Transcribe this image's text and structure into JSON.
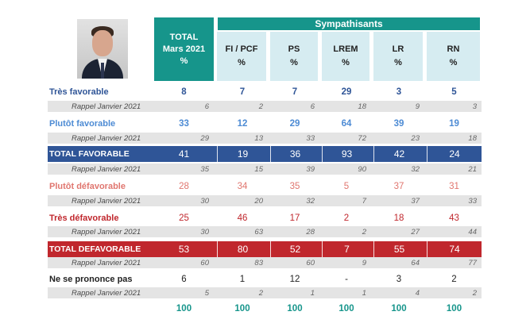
{
  "header": {
    "total": {
      "line1": "TOTAL",
      "line2": "Mars 2021",
      "line3": "%"
    },
    "group_title": "Sympathisants",
    "parties": [
      {
        "name": "FI / PCF",
        "unit": "%"
      },
      {
        "name": "PS",
        "unit": "%"
      },
      {
        "name": "LREM",
        "unit": "%"
      },
      {
        "name": "LR",
        "unit": "%"
      },
      {
        "name": "RN",
        "unit": "%"
      }
    ]
  },
  "rows": [
    {
      "label": "Très favorable",
      "kind": "main",
      "color": "#2f5597",
      "values": [
        "8",
        "7",
        "7",
        "29",
        "3",
        "5"
      ]
    },
    {
      "label": "Rappel Janvier 2021",
      "kind": "rappel",
      "values": [
        "6",
        "2",
        "6",
        "18",
        "9",
        "3"
      ]
    },
    {
      "label": "Plutôt favorable",
      "kind": "main",
      "color": "#4d8bd4",
      "values": [
        "33",
        "12",
        "29",
        "64",
        "39",
        "19"
      ]
    },
    {
      "label": "Rappel Janvier 2021",
      "kind": "rappel",
      "values": [
        "29",
        "13",
        "33",
        "72",
        "23",
        "18"
      ]
    },
    {
      "label": "TOTAL FAVORABLE",
      "kind": "band",
      "color": "#2f5597",
      "values": [
        "41",
        "19",
        "36",
        "93",
        "42",
        "24"
      ]
    },
    {
      "label": "Rappel Janvier 2021",
      "kind": "rappel",
      "values": [
        "35",
        "15",
        "39",
        "90",
        "32",
        "21"
      ]
    },
    {
      "label": "Plutôt défavorable",
      "kind": "main",
      "color": "#e0766f",
      "values": [
        "28",
        "34",
        "35",
        "5",
        "37",
        "31"
      ]
    },
    {
      "label": "Rappel Janvier 2021",
      "kind": "rappel",
      "values": [
        "30",
        "20",
        "32",
        "7",
        "37",
        "33"
      ]
    },
    {
      "label": "Très défavorable",
      "kind": "main",
      "color": "#c0272d",
      "values": [
        "25",
        "46",
        "17",
        "2",
        "18",
        "43"
      ]
    },
    {
      "label": "Rappel Janvier 2021",
      "kind": "rappel",
      "values": [
        "30",
        "63",
        "28",
        "2",
        "27",
        "44"
      ]
    },
    {
      "label": "TOTAL DEFAVORABLE",
      "kind": "band",
      "color": "#c0272d",
      "values": [
        "53",
        "80",
        "52",
        "7",
        "55",
        "74"
      ]
    },
    {
      "label": "Rappel Janvier 2021",
      "kind": "rappel",
      "values": [
        "60",
        "83",
        "60",
        "9",
        "64",
        "77"
      ]
    },
    {
      "label": "Ne se prononce pas",
      "kind": "main",
      "color": "#222222",
      "values": [
        "6",
        "1",
        "12",
        "-",
        "3",
        "2"
      ]
    },
    {
      "label": "Rappel Janvier 2021",
      "kind": "rappel",
      "values": [
        "5",
        "2",
        "1",
        "1",
        "4",
        "2"
      ]
    },
    {
      "label": "",
      "kind": "total",
      "color": "#16958b",
      "values": [
        "100",
        "100",
        "100",
        "100",
        "100",
        "100"
      ]
    }
  ],
  "colors": {
    "accent": "#16958b",
    "party_header_bg": "#d6ecf1",
    "rappel_bg": "#e4e4e4"
  }
}
